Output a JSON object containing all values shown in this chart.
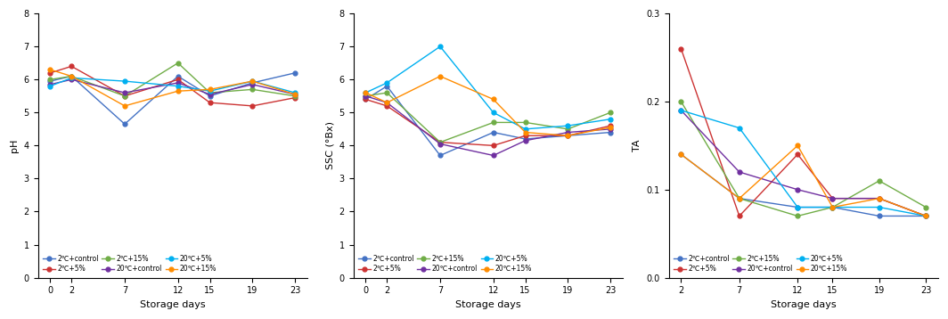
{
  "colors": {
    "2C_control": "#4472C4",
    "2C_5pct": "#CC3333",
    "2C_15pct": "#70AD47",
    "20C_control": "#7030A0",
    "20C_5pct": "#00B0F0",
    "20C_15pct": "#FF8C00"
  },
  "legend_labels": {
    "2C_control": "2℃+control",
    "2C_5pct": "2℃+5%",
    "2C_15pct": "2℃+15%",
    "20C_control": "20℃+control",
    "20C_5pct": "20℃+5%",
    "20C_15pct": "20℃+15%"
  },
  "ph": {
    "x": [
      0,
      2,
      7,
      12,
      15,
      19,
      23
    ],
    "2C_control": [
      5.95,
      6.1,
      4.65,
      6.1,
      5.5,
      5.9,
      6.2
    ],
    "2C_5pct": [
      6.2,
      6.4,
      5.5,
      6.0,
      5.3,
      5.2,
      5.45
    ],
    "2C_15pct": [
      6.0,
      6.1,
      5.5,
      6.5,
      5.6,
      5.7,
      5.5
    ],
    "20C_control": [
      5.85,
      6.0,
      5.6,
      5.9,
      5.55,
      5.85,
      5.55
    ],
    "20C_5pct": [
      5.8,
      6.05,
      5.95,
      5.8,
      5.65,
      5.95,
      5.6
    ],
    "20C_15pct": [
      6.3,
      6.1,
      5.2,
      5.65,
      5.7,
      5.95,
      5.55
    ],
    "ylabel": "pH",
    "ylim": [
      0,
      8
    ],
    "yticks": [
      0,
      1,
      2,
      3,
      4,
      5,
      6,
      7,
      8
    ]
  },
  "ssc": {
    "x": [
      0,
      2,
      7,
      12,
      15,
      19,
      23
    ],
    "2C_control": [
      5.4,
      5.8,
      3.7,
      4.4,
      4.2,
      4.3,
      4.4
    ],
    "2C_5pct": [
      5.4,
      5.2,
      4.1,
      4.0,
      4.3,
      4.3,
      4.6
    ],
    "2C_15pct": [
      5.5,
      5.6,
      4.1,
      4.7,
      4.7,
      4.5,
      5.0
    ],
    "20C_control": [
      5.5,
      5.3,
      4.05,
      3.7,
      4.15,
      4.4,
      4.5
    ],
    "20C_5pct": [
      5.6,
      5.9,
      7.0,
      5.0,
      4.5,
      4.6,
      4.8
    ],
    "20C_15pct": [
      5.6,
      5.3,
      6.1,
      5.4,
      4.4,
      4.3,
      4.55
    ],
    "ylabel": "SSC (°Bx)",
    "ylim": [
      0,
      8
    ],
    "yticks": [
      0,
      1,
      2,
      3,
      4,
      5,
      6,
      7,
      8
    ]
  },
  "ta": {
    "x": [
      2,
      7,
      12,
      15,
      19,
      23
    ],
    "2C_control": [
      0.14,
      0.09,
      0.08,
      0.08,
      0.07,
      0.07
    ],
    "2C_5pct": [
      0.26,
      0.07,
      0.14,
      0.09,
      0.09,
      0.07
    ],
    "2C_15pct": [
      0.2,
      0.09,
      0.07,
      0.08,
      0.11,
      0.08
    ],
    "20C_control": [
      0.19,
      0.12,
      0.1,
      0.09,
      0.09,
      0.07
    ],
    "20C_5pct": [
      0.19,
      0.17,
      0.08,
      0.08,
      0.08,
      0.07
    ],
    "20C_15pct": [
      0.14,
      0.09,
      0.15,
      0.08,
      0.09,
      0.07
    ],
    "ylabel": "TA",
    "ylim": [
      0.0,
      0.3
    ],
    "yticks": [
      0.0,
      0.1,
      0.2,
      0.3
    ]
  },
  "xlabel": "Storage days",
  "marker": "o",
  "markersize": 3.5,
  "linewidth": 1.0,
  "tick_fontsize": 7,
  "label_fontsize": 8,
  "legend_fontsize": 5.5
}
